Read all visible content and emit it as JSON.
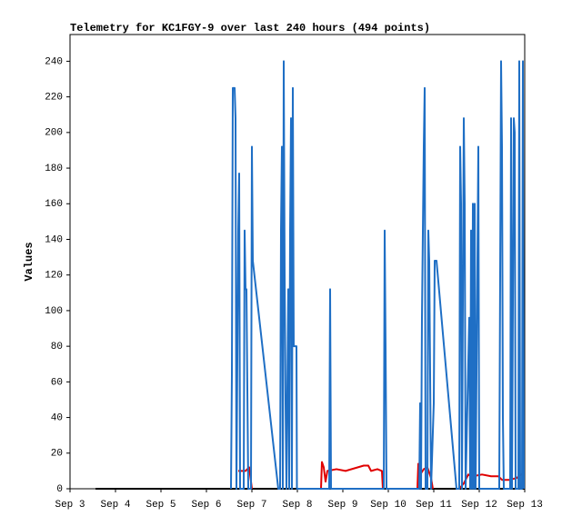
{
  "chart_data": {
    "type": "line",
    "title": "Telemetry for KC1FGY-9 over last 240 hours (494 points)",
    "y_label": "Values",
    "xlim": [
      0,
      10
    ],
    "xticks": [
      {
        "value": 0,
        "label": "Sep 3"
      },
      {
        "value": 1,
        "label": "Sep 4"
      },
      {
        "value": 2,
        "label": "Sep 5"
      },
      {
        "value": 3,
        "label": "Sep 6"
      },
      {
        "value": 4,
        "label": "Sep 7"
      },
      {
        "value": 5,
        "label": "Sep 8"
      },
      {
        "value": 6,
        "label": "Sep 9"
      },
      {
        "value": 7,
        "label": "Sep 10"
      },
      {
        "value": 8,
        "label": "Sep 11"
      },
      {
        "value": 9,
        "label": "Sep 12"
      },
      {
        "value": 10,
        "label": "Sep 13"
      }
    ],
    "ylim": [
      0,
      255
    ],
    "yticks": [
      0,
      20,
      40,
      60,
      80,
      100,
      120,
      140,
      160,
      180,
      200,
      220,
      240
    ],
    "series": [
      {
        "color": "#000000",
        "x": [
          0.56,
          10.0
        ],
        "values": [
          0,
          0
        ]
      },
      {
        "color": "#e00000",
        "x": [
          3.7,
          3.86,
          3.94,
          4.0,
          null,
          5.52,
          5.54,
          5.58,
          5.62,
          5.66,
          5.86,
          6.06,
          6.46,
          6.56,
          6.62,
          6.76,
          6.86,
          6.88,
          null,
          7.64,
          7.66,
          7.7,
          7.78,
          7.86,
          7.94,
          7.98,
          null,
          8.56,
          8.66,
          8.76,
          8.86,
          9.06,
          9.26,
          9.42,
          9.5,
          9.66,
          9.82,
          9.98
        ],
        "values": [
          10,
          10,
          12,
          0,
          null,
          0,
          15,
          12,
          4,
          10,
          11,
          10,
          13,
          13,
          10,
          11,
          10,
          0,
          null,
          0,
          14,
          8,
          11,
          12,
          6,
          0,
          null,
          0,
          3,
          8,
          7,
          8,
          7,
          7,
          5,
          5,
          6,
          9
        ]
      },
      {
        "color": "#1f6fc5",
        "x": [
          3.54,
          3.56,
          3.58,
          3.62,
          3.64,
          3.66,
          3.7,
          3.72,
          3.74,
          3.82,
          3.84,
          3.86,
          3.88,
          3.9,
          3.92,
          3.98,
          4.0,
          4.02,
          4.58,
          4.62,
          4.64,
          4.66,
          4.68,
          4.7,
          4.72,
          4.74,
          4.76,
          4.8,
          4.82,
          4.84,
          4.86,
          4.88,
          4.9,
          4.92,
          4.98,
          4.99,
          5.7,
          5.72,
          5.74,
          6.9,
          6.92,
          6.94,
          6.96,
          7.68,
          7.7,
          7.72,
          7.74,
          7.78,
          7.8,
          7.82,
          7.86,
          7.88,
          7.9,
          7.94,
          8.0,
          8.02,
          8.06,
          8.5,
          8.56,
          8.58,
          8.6,
          8.62,
          8.66,
          8.68,
          8.7,
          8.78,
          8.8,
          8.82,
          8.84,
          8.86,
          8.88,
          8.9,
          8.92,
          8.98,
          9.0,
          9.44,
          9.48,
          9.5,
          9.52,
          9.54,
          9.68,
          9.7,
          9.72,
          9.76,
          9.78,
          9.8,
          9.86,
          9.88,
          9.9,
          9.94,
          9.96,
          9.98
        ],
        "values": [
          0,
          64,
          225,
          225,
          208,
          0,
          145,
          177,
          0,
          0,
          145,
          112,
          112,
          56,
          0,
          0,
          192,
          128,
          0,
          0,
          145,
          192,
          0,
          240,
          120,
          48,
          0,
          112,
          0,
          145,
          208,
          0,
          225,
          80,
          80,
          0,
          0,
          112,
          0,
          0,
          145,
          80,
          0,
          0,
          48,
          0,
          96,
          192,
          225,
          0,
          0,
          145,
          128,
          0,
          48,
          128,
          128,
          0,
          0,
          192,
          160,
          0,
          208,
          160,
          0,
          96,
          0,
          145,
          0,
          160,
          0,
          160,
          0,
          192,
          0,
          0,
          240,
          192,
          40,
          0,
          0,
          208,
          0,
          208,
          200,
          0,
          0,
          240,
          0,
          0,
          240,
          0
        ]
      }
    ]
  }
}
